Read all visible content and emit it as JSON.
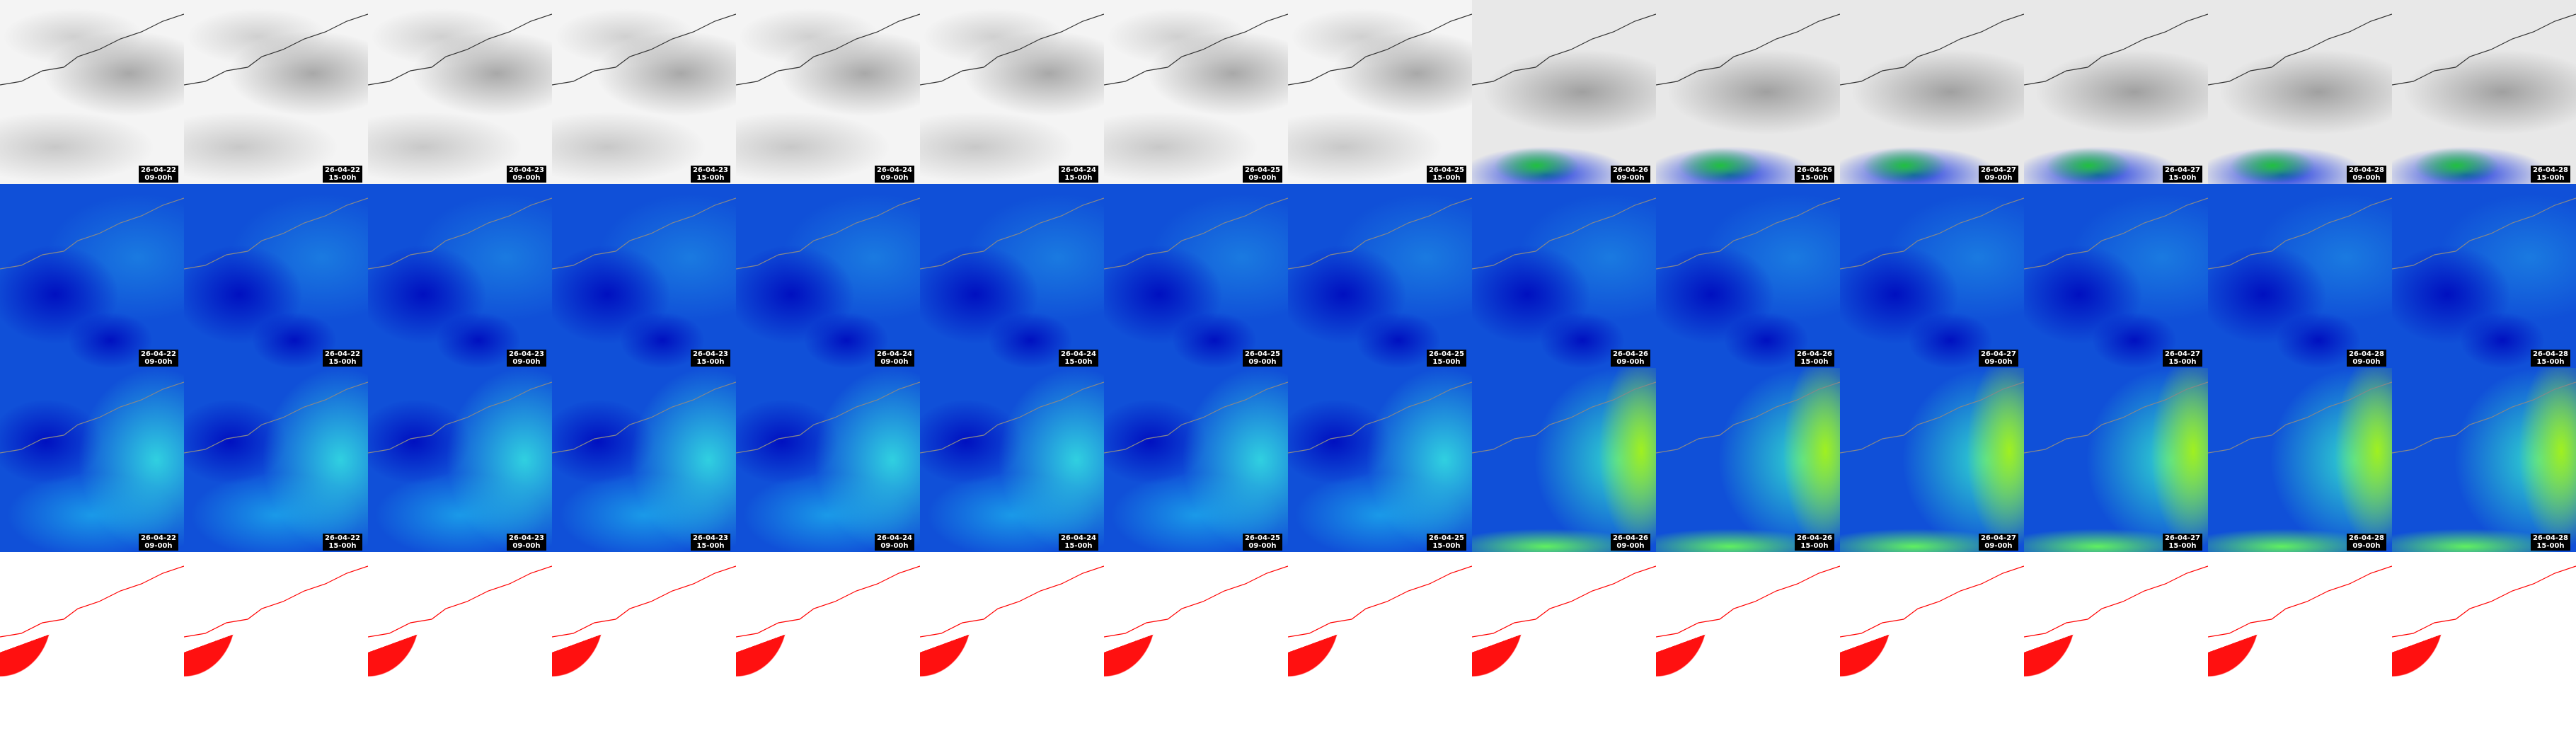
{
  "rows": [
    {
      "tiles": [
        {
          "date": "26-04-22",
          "time": "09-00h"
        },
        {
          "date": "26-04-22",
          "time": "15-00h"
        },
        {
          "date": "26-04-23",
          "time": "09-00h"
        },
        {
          "date": "26-04-23",
          "time": "15-00h"
        },
        {
          "date": "26-04-24",
          "time": "09-00h"
        },
        {
          "date": "26-04-24",
          "time": "15-00h"
        },
        {
          "date": "26-04-25",
          "time": "09-00h"
        },
        {
          "date": "26-04-25",
          "time": "15-00h"
        },
        {
          "date": "26-04-26",
          "time": "09-00h"
        },
        {
          "date": "26-04-26",
          "time": "15-00h"
        },
        {
          "date": "26-04-27",
          "time": "09-00h"
        },
        {
          "date": "26-04-27",
          "time": "15-00h"
        },
        {
          "date": "26-04-28",
          "time": "09-00h"
        },
        {
          "date": "26-04-28",
          "time": "15-00h"
        }
      ]
    },
    {
      "tiles": [
        {
          "date": "26-04-22",
          "time": "09-00h"
        },
        {
          "date": "26-04-22",
          "time": "15-00h"
        },
        {
          "date": "26-04-23",
          "time": "09-00h"
        },
        {
          "date": "26-04-23",
          "time": "15-00h"
        },
        {
          "date": "26-04-24",
          "time": "09-00h"
        },
        {
          "date": "26-04-24",
          "time": "15-00h"
        },
        {
          "date": "26-04-25",
          "time": "09-00h"
        },
        {
          "date": "26-04-25",
          "time": "15-00h"
        },
        {
          "date": "26-04-26",
          "time": "09-00h"
        },
        {
          "date": "26-04-26",
          "time": "15-00h"
        },
        {
          "date": "26-04-27",
          "time": "09-00h"
        },
        {
          "date": "26-04-27",
          "time": "15-00h"
        },
        {
          "date": "26-04-28",
          "time": "09-00h"
        },
        {
          "date": "26-04-28",
          "time": "15-00h"
        }
      ]
    },
    {
      "tiles": [
        {
          "date": "26-04-22",
          "time": "09-00h"
        },
        {
          "date": "26-04-22",
          "time": "15-00h"
        },
        {
          "date": "26-04-23",
          "time": "09-00h"
        },
        {
          "date": "26-04-23",
          "time": "15-00h"
        },
        {
          "date": "26-04-24",
          "time": "09-00h"
        },
        {
          "date": "26-04-24",
          "time": "15-00h"
        },
        {
          "date": "26-04-25",
          "time": "09-00h"
        },
        {
          "date": "26-04-25",
          "time": "15-00h"
        },
        {
          "date": "26-04-26",
          "time": "09-00h"
        },
        {
          "date": "26-04-26",
          "time": "15-00h"
        },
        {
          "date": "26-04-27",
          "time": "09-00h"
        },
        {
          "date": "26-04-27",
          "time": "15-00h"
        },
        {
          "date": "26-04-28",
          "time": "09-00h"
        },
        {
          "date": "26-04-28",
          "time": "15-00h"
        }
      ]
    }
  ]
}
